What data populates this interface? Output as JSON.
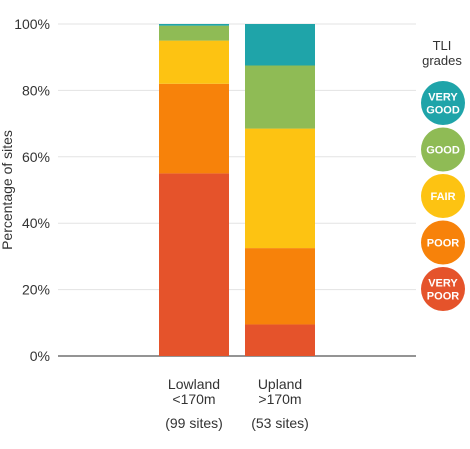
{
  "chart_data": {
    "type": "bar",
    "stacked": true,
    "percent": true,
    "title": "",
    "xlabel": "",
    "ylabel": "Percentage of sites",
    "ylim": [
      0,
      100
    ],
    "y_ticks": [
      "0%",
      "20%",
      "40%",
      "60%",
      "80%",
      "100%"
    ],
    "grid": true,
    "legend_placement": "right",
    "legend_title": [
      "TLI",
      "grades"
    ],
    "categories": [
      {
        "label": [
          "Lowland",
          "<170m"
        ],
        "note": "(99 sites)"
      },
      {
        "label": [
          "Upland",
          ">170m"
        ],
        "note": "(53 sites)"
      }
    ],
    "series": [
      {
        "name": [
          "VERY",
          "POOR"
        ],
        "color": "#e5532b",
        "values": [
          55,
          9.5
        ]
      },
      {
        "name": [
          "POOR"
        ],
        "color": "#f7820a",
        "values": [
          27,
          23
        ]
      },
      {
        "name": [
          "FAIR"
        ],
        "color": "#fdc312",
        "values": [
          13,
          36
        ]
      },
      {
        "name": [
          "GOOD"
        ],
        "color": "#8fbb55",
        "values": [
          4.5,
          19
        ]
      },
      {
        "name": [
          "VERY",
          "GOOD"
        ],
        "color": "#1fa4a9",
        "values": [
          0.5,
          12.5
        ]
      }
    ]
  }
}
